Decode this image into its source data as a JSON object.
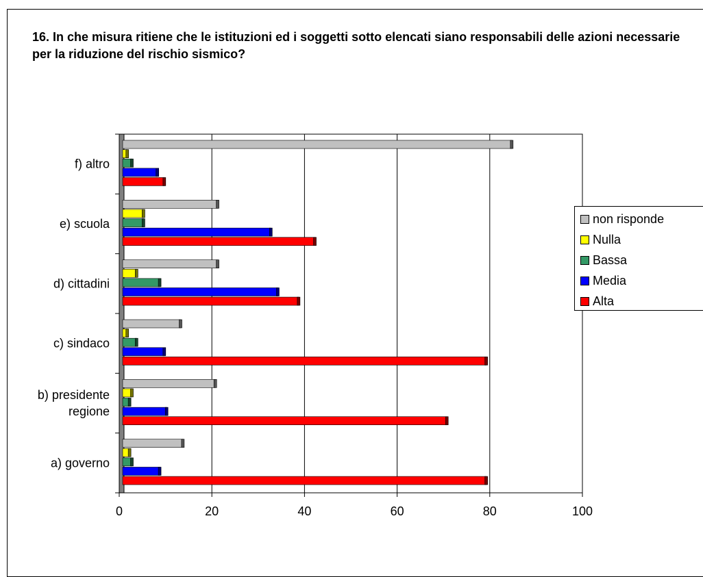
{
  "chart_data": {
    "type": "bar",
    "orientation": "horizontal",
    "title": "16. In che misura ritiene che le istituzioni ed i soggetti sotto elencati siano responsabili delle azioni necessarie per la riduzione del rischio sismico?",
    "categories": [
      [
        "a) governo"
      ],
      [
        "b) presidente",
        "regione"
      ],
      [
        "c) sindaco"
      ],
      [
        "d) cittadini"
      ],
      [
        "e) scuola"
      ],
      [
        "f) altro"
      ]
    ],
    "series": [
      {
        "name": "non risponde",
        "color": "#c0c0c0",
        "values": [
          13,
          20,
          12.5,
          20.5,
          20.5,
          84
        ]
      },
      {
        "name": "Nulla",
        "color": "#ffff00",
        "values": [
          1.5,
          2,
          1,
          3,
          4.5,
          1
        ]
      },
      {
        "name": "Bassa",
        "color": "#339966",
        "values": [
          2,
          1.5,
          3,
          8,
          4.5,
          2
        ]
      },
      {
        "name": "Media",
        "color": "#0000ff",
        "values": [
          8,
          9.5,
          9,
          33.5,
          32,
          7.5
        ]
      },
      {
        "name": "Alta",
        "color": "#ff0000",
        "values": [
          78.5,
          70,
          78.5,
          38,
          41.5,
          9
        ]
      }
    ],
    "xlim": [
      0,
      100
    ],
    "xticks": [
      0,
      20,
      40,
      60,
      80,
      100
    ],
    "grid": true,
    "legend_position": "right"
  }
}
